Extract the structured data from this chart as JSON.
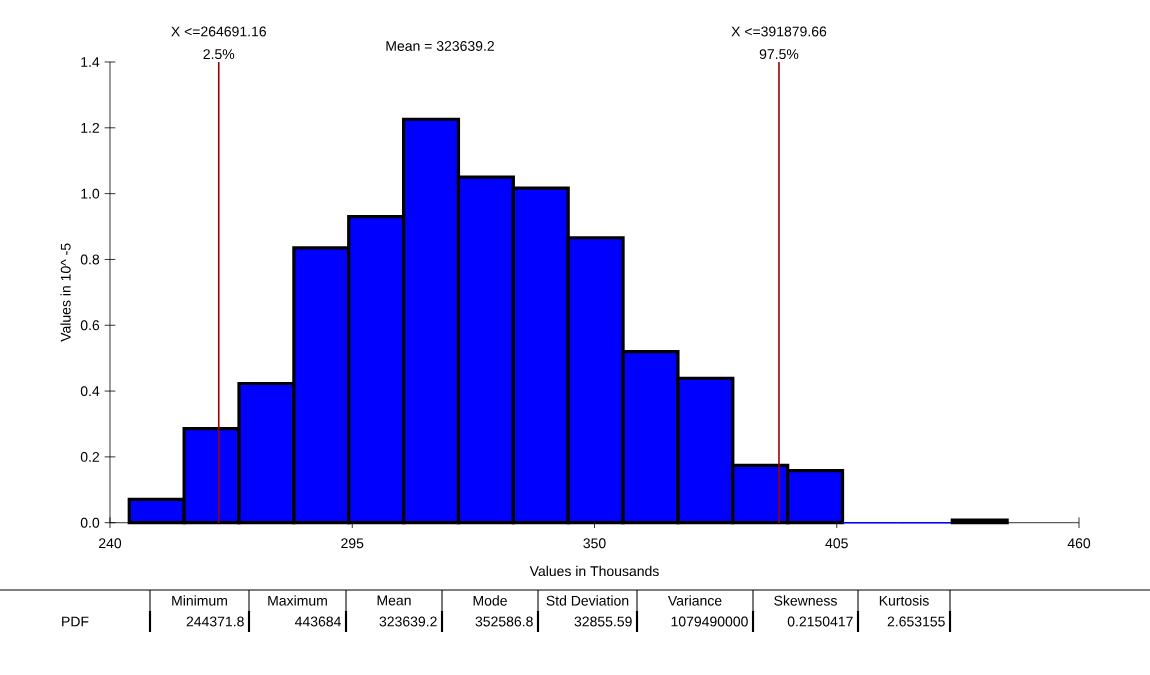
{
  "chart_data": {
    "type": "histogram",
    "xlabel": "Values in Thousands",
    "ylabel": "Values in 10^ -5",
    "bins": [
      244.372,
      256.829,
      269.286,
      281.743,
      294.2,
      306.657,
      319.114,
      331.571,
      344.028,
      356.485,
      368.942,
      381.399,
      393.856,
      406.313,
      418.77,
      431.227,
      443.684
    ],
    "values": [
      0.071,
      0.286,
      0.423,
      0.835,
      0.93,
      1.226,
      1.05,
      1.017,
      0.866,
      0.52,
      0.439,
      0.174,
      0.158,
      0,
      0,
      0.008
    ],
    "color": "#0000ff",
    "xlim": [
      240,
      460
    ],
    "xticks": [
      240,
      295,
      350,
      405,
      460
    ],
    "ylim": [
      0,
      1.4
    ],
    "yticks": [
      {
        "value": 0,
        "label": "0.0"
      },
      {
        "value": 0.2,
        "label": "0.2"
      },
      {
        "value": 0.4,
        "label": "0.4"
      },
      {
        "value": 0.6,
        "label": "0.6"
      },
      {
        "value": 0.8,
        "label": "0.8"
      },
      {
        "value": 1.0,
        "label": "1.0"
      },
      {
        "value": 1.2,
        "label": "1.2"
      },
      {
        "value": 1.4,
        "label": "1.4"
      }
    ],
    "ref_lines": [
      {
        "axis": "x",
        "value": 264.69116,
        "label": "X <=264691.16",
        "color": "#990000"
      },
      {
        "axis": "x",
        "value": 391.87966,
        "label": "X <=391879.66",
        "color": "#990000"
      }
    ],
    "annotations": [
      "Mean = 323639.2",
      {
        "text": "2.5%",
        "x": 264.69116,
        "y": 1.4
      },
      {
        "text": "97.5%",
        "x": 391.87966,
        "y": 1.4
      },
      "Minimum",
      "Maximum",
      "Mean",
      "Mode",
      "Std Deviation",
      "Variance",
      "Skewness",
      "Kurtosis",
      "PDF",
      "244371.8",
      "443684",
      "323639.2",
      "352586.8",
      "32855.59",
      "1079490000",
      "0.2150417",
      "2.653155"
    ]
  }
}
